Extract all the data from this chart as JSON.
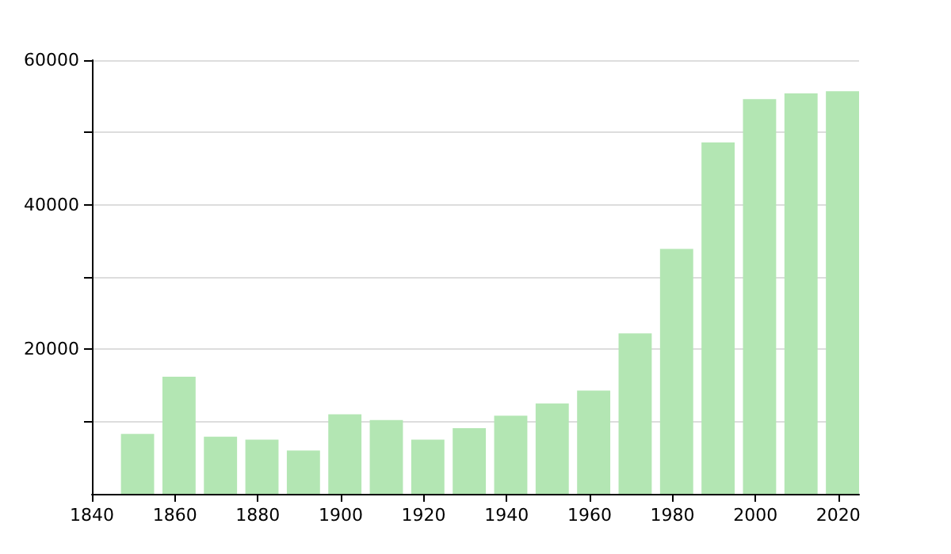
{
  "chart_data": {
    "type": "bar",
    "x": [
      1851,
      1861,
      1871,
      1881,
      1891,
      1901,
      1911,
      1921,
      1931,
      1941,
      1951,
      1961,
      1971,
      1981,
      1991,
      2001,
      2011,
      2021
    ],
    "values": [
      8300,
      16200,
      7900,
      7500,
      6000,
      11000,
      10200,
      7500,
      9100,
      10800,
      12500,
      14300,
      22200,
      33900,
      48600,
      54600,
      55400,
      55700
    ],
    "color": "#b3e6b3",
    "xlim": [
      1840,
      2025
    ],
    "xticks": [
      1840,
      1860,
      1880,
      1900,
      1920,
      1940,
      1960,
      1980,
      2000,
      2020
    ],
    "ylim": [
      0,
      60000
    ],
    "yticks": [
      {
        "value": 10000,
        "label": null
      },
      20000,
      {
        "value": 30000,
        "label": null
      },
      40000,
      {
        "value": 50000,
        "label": null
      },
      60000
    ],
    "grid": "y"
  }
}
